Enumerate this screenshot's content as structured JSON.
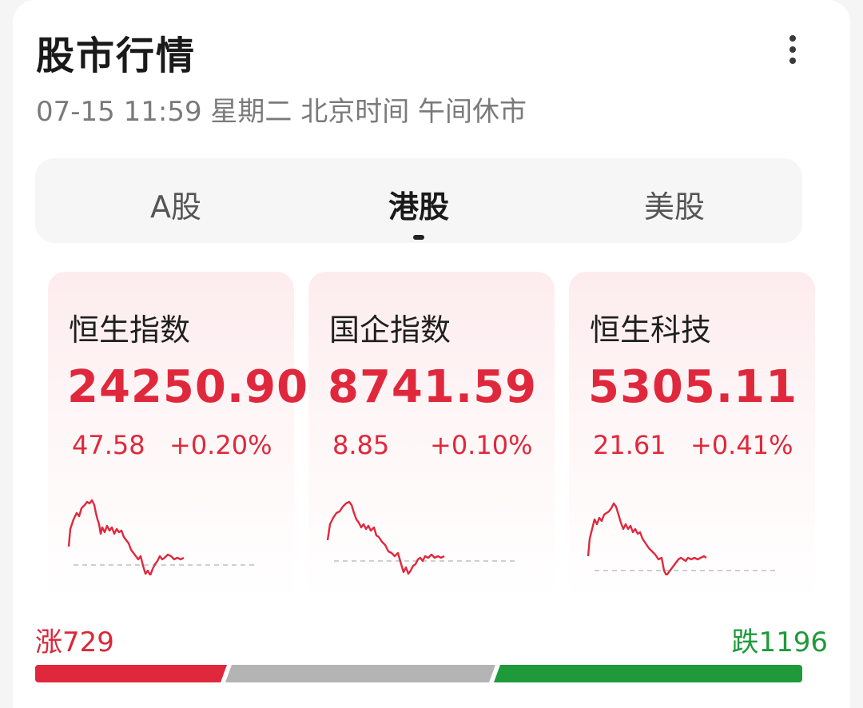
{
  "header": {
    "title": "股市行情",
    "subtitle": "07-15 11:59 星期二 北京时间 午间休市",
    "more_icon": "more-vertical-icon"
  },
  "tabs": [
    {
      "label": "A股",
      "active": false
    },
    {
      "label": "港股",
      "active": true
    },
    {
      "label": "美股",
      "active": false
    }
  ],
  "indices": [
    {
      "name": "恒生指数",
      "value": "24250.90",
      "change": "47.58",
      "percent": "+0.20%"
    },
    {
      "name": "国企指数",
      "value": "8741.59",
      "change": "8.85",
      "percent": "+0.10%"
    },
    {
      "name": "恒生科技",
      "value": "5305.11",
      "change": "21.61",
      "percent": "+0.41%"
    }
  ],
  "breadth": {
    "rise_label": "涨729",
    "fall_label": "跌1196",
    "rise_count": 729,
    "fall_count": 1196
  },
  "colors": {
    "up": "#e0283c",
    "down": "#1f9a3a",
    "flat": "#b4b4b4"
  }
}
